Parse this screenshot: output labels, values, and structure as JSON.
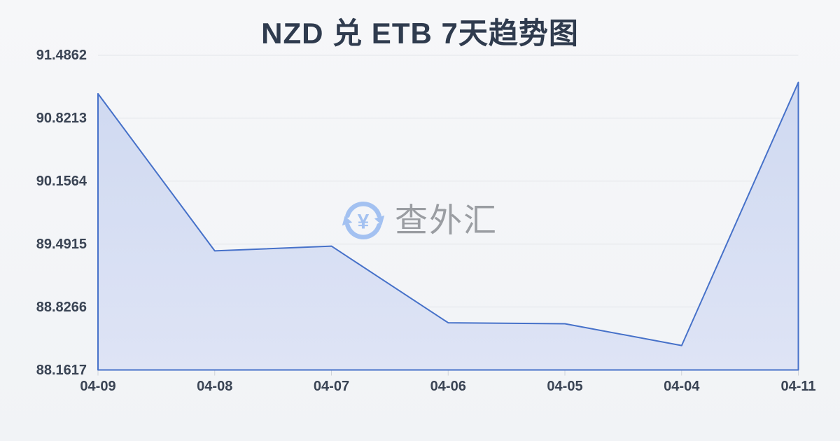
{
  "title": "NZD 兑 ETB 7天趋势图",
  "watermark": {
    "text": "查外汇",
    "icon_symbol": "¥"
  },
  "colors": {
    "background": "#f2f4f6",
    "title_text": "#2f3b4e",
    "axis_label_text": "#3a4454",
    "line": "#4671c9",
    "area_fill_top": "#cbd6f0",
    "area_fill_bottom": "#dce2f5",
    "gridline": "#e3e5ea",
    "tick": "#cfd3d9",
    "watermark_text": "#9a9da2",
    "watermark_icon": "#a3c1f1"
  },
  "chart_data": {
    "type": "area",
    "title": "NZD 兑 ETB 7天趋势图",
    "categories": [
      "04-09",
      "04-08",
      "04-07",
      "04-06",
      "04-05",
      "04-04",
      "04-11"
    ],
    "values": [
      91.08,
      89.42,
      89.47,
      88.66,
      88.65,
      88.42,
      91.2
    ],
    "xlabel": "",
    "ylabel": "",
    "ylim": [
      88.1617,
      91.4862
    ],
    "y_ticks": [
      "88.1617",
      "88.8266",
      "89.4915",
      "90.1564",
      "90.8213",
      "91.4862"
    ],
    "grid": true,
    "legend": false
  }
}
